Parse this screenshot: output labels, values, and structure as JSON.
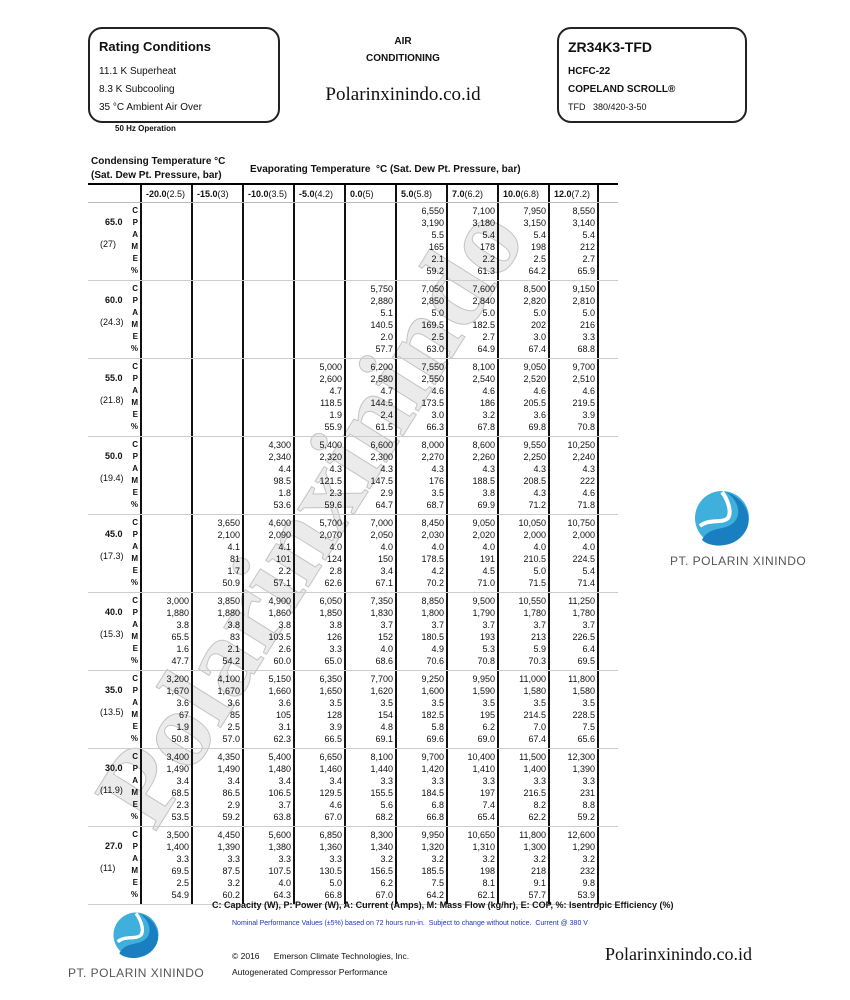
{
  "rating": {
    "title": "Rating Conditions",
    "lines": [
      "11.1 K Superheat",
      "8.3 K Subcooling",
      "35 °C Ambient Air Over"
    ],
    "frequency": "50 Hz Operation"
  },
  "center": {
    "line1": "AIR",
    "line2": "CONDITIONING",
    "website": "Polarinxinindo.co.id"
  },
  "model": {
    "name": "ZR34K3-TFD",
    "refrigerant": "HCFC-22",
    "brand": "COPELAND SCROLL®",
    "electrical": "TFD   380/420-3-50"
  },
  "watermark": "Polarinxinindo",
  "logo": {
    "company": "PT. POLARIN XININDO",
    "color": "#2a9fd6"
  },
  "table": {
    "cond_label1": "Condensing Temperature °C",
    "cond_label2": "(Sat. Dew Pt. Pressure, bar)",
    "evap_label": "Evaporating Temperature  °C (Sat. Dew Pt. Pressure, bar)",
    "columns": [
      {
        "temp": "-20.0",
        "pres": "(2.5)"
      },
      {
        "temp": "-15.0",
        "pres": "(3)"
      },
      {
        "temp": "-10.0",
        "pres": "(3.5)"
      },
      {
        "temp": "-5.0",
        "pres": "(4.2)"
      },
      {
        "temp": "0.0",
        "pres": "(5)"
      },
      {
        "temp": "5.0",
        "pres": "(5.8)"
      },
      {
        "temp": "7.0",
        "pres": "(6.2)"
      },
      {
        "temp": "10.0",
        "pres": "(6.8)"
      },
      {
        "temp": "12.0",
        "pres": "(7.2)"
      }
    ],
    "metrics": [
      "C",
      "P",
      "A",
      "M",
      "E",
      "%"
    ],
    "groups": [
      {
        "temp": "65.0",
        "pres": "(27)",
        "values": {
          "C": [
            "",
            "",
            "",
            "",
            "",
            "6,550",
            "7,100",
            "7,950",
            "8,550"
          ],
          "P": [
            "",
            "",
            "",
            "",
            "",
            "3,190",
            "3,180",
            "3,150",
            "3,140"
          ],
          "A": [
            "",
            "",
            "",
            "",
            "",
            "5.5",
            "5.4",
            "5.4",
            "5.4"
          ],
          "M": [
            "",
            "",
            "",
            "",
            "",
            "165",
            "178",
            "198",
            "212"
          ],
          "E": [
            "",
            "",
            "",
            "",
            "",
            "2.1",
            "2.2",
            "2.5",
            "2.7"
          ],
          "%": [
            "",
            "",
            "",
            "",
            "",
            "59.2",
            "61.3",
            "64.2",
            "65.9"
          ]
        }
      },
      {
        "temp": "60.0",
        "pres": "(24.3)",
        "values": {
          "C": [
            "",
            "",
            "",
            "",
            "5,750",
            "7,050",
            "7,600",
            "8,500",
            "9,150"
          ],
          "P": [
            "",
            "",
            "",
            "",
            "2,880",
            "2,850",
            "2,840",
            "2,820",
            "2,810"
          ],
          "A": [
            "",
            "",
            "",
            "",
            "5.1",
            "5.0",
            "5.0",
            "5.0",
            "5.0"
          ],
          "M": [
            "",
            "",
            "",
            "",
            "140.5",
            "169.5",
            "182.5",
            "202",
            "216"
          ],
          "E": [
            "",
            "",
            "",
            "",
            "2.0",
            "2.5",
            "2.7",
            "3.0",
            "3.3"
          ],
          "%": [
            "",
            "",
            "",
            "",
            "57.7",
            "63.0",
            "64.9",
            "67.4",
            "68.8"
          ]
        }
      },
      {
        "temp": "55.0",
        "pres": "(21.8)",
        "values": {
          "C": [
            "",
            "",
            "",
            "5,000",
            "6,200",
            "7,550",
            "8,100",
            "9,050",
            "9,700"
          ],
          "P": [
            "",
            "",
            "",
            "2,600",
            "2,580",
            "2,550",
            "2,540",
            "2,520",
            "2,510"
          ],
          "A": [
            "",
            "",
            "",
            "4.7",
            "4.7",
            "4.6",
            "4.6",
            "4.6",
            "4.6"
          ],
          "M": [
            "",
            "",
            "",
            "118.5",
            "144.5",
            "173.5",
            "186",
            "205.5",
            "219.5"
          ],
          "E": [
            "",
            "",
            "",
            "1.9",
            "2.4",
            "3.0",
            "3.2",
            "3.6",
            "3.9"
          ],
          "%": [
            "",
            "",
            "",
            "55.9",
            "61.5",
            "66.3",
            "67.8",
            "69.8",
            "70.8"
          ]
        }
      },
      {
        "temp": "50.0",
        "pres": "(19.4)",
        "values": {
          "C": [
            "",
            "",
            "4,300",
            "5,400",
            "6,600",
            "8,000",
            "8,600",
            "9,550",
            "10,250"
          ],
          "P": [
            "",
            "",
            "2,340",
            "2,320",
            "2,300",
            "2,270",
            "2,260",
            "2,250",
            "2,240"
          ],
          "A": [
            "",
            "",
            "4.4",
            "4.3",
            "4.3",
            "4.3",
            "4.3",
            "4.3",
            "4.3"
          ],
          "M": [
            "",
            "",
            "98.5",
            "121.5",
            "147.5",
            "176",
            "188.5",
            "208.5",
            "222"
          ],
          "E": [
            "",
            "",
            "1.8",
            "2.3",
            "2.9",
            "3.5",
            "3.8",
            "4.3",
            "4.6"
          ],
          "%": [
            "",
            "",
            "53.6",
            "59.6",
            "64.7",
            "68.7",
            "69.9",
            "71.2",
            "71.8"
          ]
        }
      },
      {
        "temp": "45.0",
        "pres": "(17.3)",
        "values": {
          "C": [
            "",
            "3,650",
            "4,600",
            "5,700",
            "7,000",
            "8,450",
            "9,050",
            "10,050",
            "10,750"
          ],
          "P": [
            "",
            "2,100",
            "2,090",
            "2,070",
            "2,050",
            "2,030",
            "2,020",
            "2,000",
            "2,000"
          ],
          "A": [
            "",
            "4.1",
            "4.1",
            "4.0",
            "4.0",
            "4.0",
            "4.0",
            "4.0",
            "4.0"
          ],
          "M": [
            "",
            "81",
            "101",
            "124",
            "150",
            "178.5",
            "191",
            "210.5",
            "224.5"
          ],
          "E": [
            "",
            "1.7",
            "2.2",
            "2.8",
            "3.4",
            "4.2",
            "4.5",
            "5.0",
            "5.4"
          ],
          "%": [
            "",
            "50.9",
            "57.1",
            "62.6",
            "67.1",
            "70.2",
            "71.0",
            "71.5",
            "71.4"
          ]
        }
      },
      {
        "temp": "40.0",
        "pres": "(15.3)",
        "values": {
          "C": [
            "3,000",
            "3,850",
            "4,900",
            "6,050",
            "7,350",
            "8,850",
            "9,500",
            "10,550",
            "11,250"
          ],
          "P": [
            "1,880",
            "1,880",
            "1,860",
            "1,850",
            "1,830",
            "1,800",
            "1,790",
            "1,780",
            "1,780"
          ],
          "A": [
            "3.8",
            "3.8",
            "3.8",
            "3.8",
            "3.7",
            "3.7",
            "3.7",
            "3.7",
            "3.7"
          ],
          "M": [
            "65.5",
            "83",
            "103.5",
            "126",
            "152",
            "180.5",
            "193",
            "213",
            "226.5"
          ],
          "E": [
            "1.6",
            "2.1",
            "2.6",
            "3.3",
            "4.0",
            "4.9",
            "5.3",
            "5.9",
            "6.4"
          ],
          "%": [
            "47.7",
            "54.2",
            "60.0",
            "65.0",
            "68.6",
            "70.6",
            "70.8",
            "70.3",
            "69.5"
          ]
        }
      },
      {
        "temp": "35.0",
        "pres": "(13.5)",
        "values": {
          "C": [
            "3,200",
            "4,100",
            "5,150",
            "6,350",
            "7,700",
            "9,250",
            "9,950",
            "11,000",
            "11,800"
          ],
          "P": [
            "1,670",
            "1,670",
            "1,660",
            "1,650",
            "1,620",
            "1,600",
            "1,590",
            "1,580",
            "1,580"
          ],
          "A": [
            "3.6",
            "3.6",
            "3.6",
            "3.5",
            "3.5",
            "3.5",
            "3.5",
            "3.5",
            "3.5"
          ],
          "M": [
            "67",
            "85",
            "105",
            "128",
            "154",
            "182.5",
            "195",
            "214.5",
            "228.5"
          ],
          "E": [
            "1.9",
            "2.5",
            "3.1",
            "3.9",
            "4.8",
            "5.8",
            "6.2",
            "7.0",
            "7.5"
          ],
          "%": [
            "50.8",
            "57.0",
            "62.3",
            "66.5",
            "69.1",
            "69.6",
            "69.0",
            "67.4",
            "65.6"
          ]
        }
      },
      {
        "temp": "30.0",
        "pres": "(11.9)",
        "values": {
          "C": [
            "3,400",
            "4,350",
            "5,400",
            "6,650",
            "8,100",
            "9,700",
            "10,400",
            "11,500",
            "12,300"
          ],
          "P": [
            "1,490",
            "1,490",
            "1,480",
            "1,460",
            "1,440",
            "1,420",
            "1,410",
            "1,400",
            "1,390"
          ],
          "A": [
            "3.4",
            "3.4",
            "3.4",
            "3.4",
            "3.3",
            "3.3",
            "3.3",
            "3.3",
            "3.3"
          ],
          "M": [
            "68.5",
            "86.5",
            "106.5",
            "129.5",
            "155.5",
            "184.5",
            "197",
            "216.5",
            "231"
          ],
          "E": [
            "2.3",
            "2.9",
            "3.7",
            "4.6",
            "5.6",
            "6.8",
            "7.4",
            "8.2",
            "8.8"
          ],
          "%": [
            "53.5",
            "59.2",
            "63.8",
            "67.0",
            "68.2",
            "66.8",
            "65.4",
            "62.2",
            "59.2"
          ]
        }
      },
      {
        "temp": "27.0",
        "pres": "(11)",
        "values": {
          "C": [
            "3,500",
            "4,450",
            "5,600",
            "6,850",
            "8,300",
            "9,950",
            "10,650",
            "11,800",
            "12,600"
          ],
          "P": [
            "1,400",
            "1,390",
            "1,380",
            "1,360",
            "1,340",
            "1,320",
            "1,310",
            "1,300",
            "1,290"
          ],
          "A": [
            "3.3",
            "3.3",
            "3.3",
            "3.3",
            "3.2",
            "3.2",
            "3.2",
            "3.2",
            "3.2"
          ],
          "M": [
            "69.5",
            "87.5",
            "107.5",
            "130.5",
            "156.5",
            "185.5",
            "198",
            "218",
            "232"
          ],
          "E": [
            "2.5",
            "3.2",
            "4.0",
            "5.0",
            "6.2",
            "7.5",
            "8.1",
            "9.1",
            "9.8"
          ],
          "%": [
            "54.9",
            "60.2",
            "64.3",
            "66.8",
            "67.0",
            "64.2",
            "62.1",
            "57.7",
            "53.9"
          ]
        }
      }
    ]
  },
  "footer": {
    "legend": "C: Capacity (W), P: Power (W), A: Current (Amps), M: Mass Flow (kg/hr), E: COP, %: Isentropic Efficiency (%)",
    "note": "Nominal Performance Values (±5%) based on 72 hours run-in.  Subject to change without notice.  Current @ 380 V",
    "note_color": "#2233bb",
    "copyright": "© 2016      Emerson Climate Technologies, Inc.",
    "autogen": "Autogenerated Compressor Performance",
    "website": "Polarinxinindo.co.id"
  }
}
